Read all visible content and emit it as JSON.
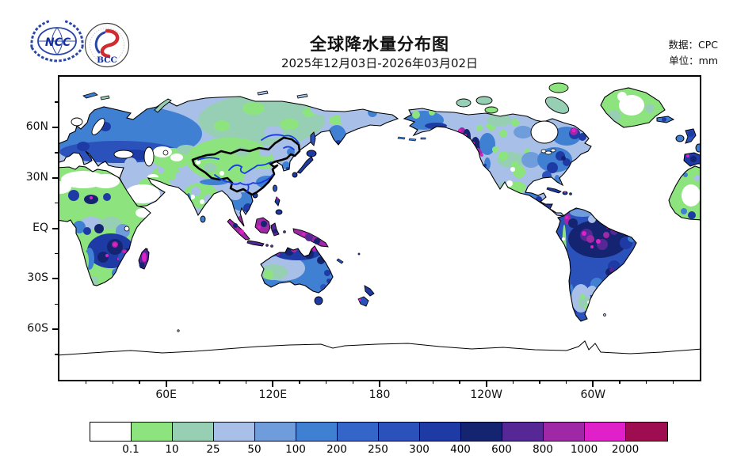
{
  "header": {
    "title": "全球降水量分布图",
    "subtitle": "2025年12月03日-2026年03月02日",
    "source_label": "数据：CPC",
    "unit_label": "单位：mm",
    "ncc_logo_text": "NCC",
    "bcc_logo_text": "BCC"
  },
  "axes": {
    "lat_major": [
      {
        "label": "60N",
        "deg": 60
      },
      {
        "label": "30N",
        "deg": 30
      },
      {
        "label": "EQ",
        "deg": 0
      },
      {
        "label": "30S",
        "deg": -30
      },
      {
        "label": "60S",
        "deg": -60
      }
    ],
    "lat_minor_deg": [
      75,
      45,
      15,
      -15,
      -45,
      -75
    ],
    "lon_major": [
      {
        "label": "60E",
        "deg": 60
      },
      {
        "label": "120E",
        "deg": 120
      },
      {
        "label": "180",
        "deg": 180
      },
      {
        "label": "120W",
        "deg": 240
      },
      {
        "label": "60W",
        "deg": 300
      }
    ],
    "lon_minor_step": 15
  },
  "legend": {
    "levels": [
      "0.1",
      "10",
      "25",
      "50",
      "100",
      "200",
      "250",
      "300",
      "400",
      "600",
      "800",
      "1000",
      "2000"
    ],
    "colors": [
      "#ffffff",
      "#8de47e",
      "#97cfb5",
      "#a8c0e8",
      "#6f9cdb",
      "#4080d2",
      "#3366c8",
      "#2b52bb",
      "#1e3ba5",
      "#152470",
      "#552896",
      "#9e28a6",
      "#e020c8",
      "#9e0d50"
    ]
  },
  "chart_data": {
    "type": "heatmap",
    "title": "全球降水量分布图",
    "subtitle": "2025年12月03日-2026年03月02日",
    "data_source": "CPC",
    "unit": "mm",
    "x_axis": {
      "ticks": [
        "60E",
        "120E",
        "180",
        "120W",
        "60W"
      ],
      "range": [
        "0E",
        "360E"
      ],
      "minor_tick_step_deg": 15
    },
    "y_axis": {
      "ticks": [
        "60N",
        "30N",
        "EQ",
        "30S",
        "60S"
      ],
      "range": [
        "90S",
        "90N"
      ],
      "minor_tick_step_deg": 15
    },
    "legend_levels_mm": [
      0.1,
      10,
      25,
      50,
      100,
      200,
      250,
      300,
      400,
      600,
      800,
      1000,
      2000
    ],
    "legend_colors": [
      "#ffffff",
      "#8de47e",
      "#97cfb5",
      "#a8c0e8",
      "#6f9cdb",
      "#4080d2",
      "#3366c8",
      "#2b52bb",
      "#1e3ba5",
      "#152470",
      "#552896",
      "#9e28a6",
      "#e020c8",
      "#9e0d50"
    ],
    "annotations": [
      "China national boundary drawn in bold black",
      "Major Chinese rivers (Yellow River, Yangtze, Tarim, Amur) drawn in blue",
      "Oceans and no-data areas shown white",
      "Antarctica outlined only"
    ],
    "regions": [
      {
        "region": "Europe / western Russia",
        "approx_mm": "100-300"
      },
      {
        "region": "Central & eastern Siberia",
        "approx_mm": "25-100"
      },
      {
        "region": "Northwest China / Tibet / Mongolia",
        "approx_mm": "0.1-25"
      },
      {
        "region": "Southeast China",
        "approx_mm": "50-250"
      },
      {
        "region": "India",
        "approx_mm": "0.1-50"
      },
      {
        "region": "Arabian Peninsula & Sahara",
        "approx_mm": "<0.1-10"
      },
      {
        "region": "Equatorial Africa",
        "approx_mm": "25-200"
      },
      {
        "region": "Southern Africa",
        "approx_mm": "300-1000"
      },
      {
        "region": "Madagascar",
        "approx_mm": "600-2000"
      },
      {
        "region": "Maritime Continent (Indonesia / New Guinea / Malay Peninsula)",
        "approx_mm": "800-2000"
      },
      {
        "region": "Northern Australia",
        "approx_mm": "300-1000"
      },
      {
        "region": "Central / western Australia",
        "approx_mm": "10-100"
      },
      {
        "region": "Alaska & Pacific Northwest coast",
        "approx_mm": "400-2000"
      },
      {
        "region": "Central North America",
        "approx_mm": "10-100"
      },
      {
        "region": "Eastern North America",
        "approx_mm": "200-600"
      },
      {
        "region": "Greenland",
        "approx_mm": "0.1-25"
      },
      {
        "region": "Amazon basin",
        "approx_mm": "400-2000"
      },
      {
        "region": "Patagonia",
        "approx_mm": "10-100"
      },
      {
        "region": "Oceans & Antarctica",
        "approx_mm": "no data (white)"
      }
    ]
  }
}
